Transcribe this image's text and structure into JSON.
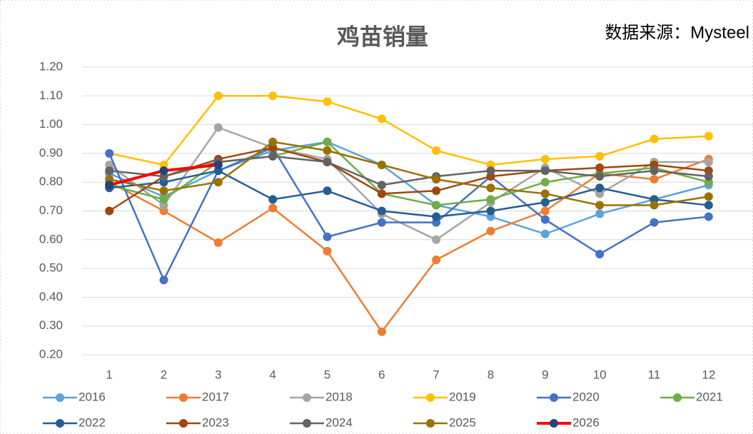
{
  "chart_data": {
    "type": "line",
    "title": "鸡苗销量",
    "annotation": "数据来源：Mysteel",
    "categories": [
      "1",
      "2",
      "3",
      "4",
      "5",
      "6",
      "7",
      "8",
      "9",
      "10",
      "11",
      "12"
    ],
    "ylim": [
      0.2,
      1.2
    ],
    "yticks": [
      {
        "value": 0.2,
        "label": "0.20"
      },
      {
        "value": 0.3,
        "label": "0.30"
      },
      {
        "value": 0.4,
        "label": "0.40"
      },
      {
        "value": 0.5,
        "label": "0.50"
      },
      {
        "value": 0.6,
        "label": "0.60"
      },
      {
        "value": 0.7,
        "label": "0.70"
      },
      {
        "value": 0.8,
        "label": "0.80"
      },
      {
        "value": 0.9,
        "label": "0.90"
      },
      {
        "value": 1.0,
        "label": "1.00"
      },
      {
        "value": 1.1,
        "label": "1.10"
      },
      {
        "value": 1.2,
        "label": "1.20"
      }
    ],
    "grid": true,
    "legend": "bottom",
    "series": [
      {
        "name": "2016",
        "color": "#5ba3dc",
        "values": [
          0.83,
          0.75,
          0.84,
          0.91,
          0.94,
          0.86,
          0.72,
          0.68,
          0.62,
          0.69,
          0.74,
          0.79
        ]
      },
      {
        "name": "2017",
        "color": "#ed7d31",
        "values": [
          0.8,
          0.7,
          0.59,
          0.71,
          0.56,
          0.28,
          0.53,
          0.63,
          0.7,
          0.83,
          0.81,
          0.88
        ]
      },
      {
        "name": "2018",
        "color": "#a5a5a5",
        "values": [
          0.86,
          0.72,
          0.99,
          0.92,
          0.88,
          0.69,
          0.6,
          0.73,
          0.85,
          0.76,
          0.87,
          0.87
        ]
      },
      {
        "name": "2019",
        "color": "#ffc000",
        "values": [
          0.9,
          0.86,
          1.1,
          1.1,
          1.08,
          1.02,
          0.91,
          0.86,
          0.88,
          0.89,
          0.95,
          0.96
        ]
      },
      {
        "name": "2020",
        "color": "#4472c4",
        "values": [
          0.9,
          0.46,
          0.84,
          0.92,
          0.61,
          0.66,
          0.66,
          0.82,
          0.67,
          0.55,
          0.66,
          0.68
        ]
      },
      {
        "name": "2021",
        "color": "#70ad47",
        "values": [
          0.79,
          0.74,
          0.87,
          0.89,
          0.94,
          0.76,
          0.72,
          0.74,
          0.8,
          0.83,
          0.85,
          0.8
        ]
      },
      {
        "name": "2022",
        "color": "#255e91",
        "values": [
          0.78,
          0.8,
          0.84,
          0.74,
          0.77,
          0.7,
          0.68,
          0.7,
          0.73,
          0.78,
          0.74,
          0.72
        ]
      },
      {
        "name": "2023",
        "color": "#9e480e",
        "values": [
          0.7,
          0.82,
          0.88,
          0.92,
          0.87,
          0.76,
          0.77,
          0.82,
          0.84,
          0.85,
          0.86,
          0.84
        ]
      },
      {
        "name": "2024",
        "color": "#636363",
        "values": [
          0.84,
          0.82,
          0.87,
          0.89,
          0.87,
          0.79,
          0.82,
          0.84,
          0.84,
          0.82,
          0.84,
          0.82
        ]
      },
      {
        "name": "2025",
        "color": "#997300",
        "values": [
          0.81,
          0.77,
          0.8,
          0.94,
          0.91,
          0.86,
          0.81,
          0.78,
          0.76,
          0.72,
          0.72,
          0.75
        ]
      },
      {
        "name": "2026",
        "color": "#ff0000",
        "marker_color": "#264478",
        "values": [
          0.79,
          0.84,
          0.86,
          null,
          null,
          null,
          null,
          null,
          null,
          null,
          null,
          null
        ]
      }
    ]
  }
}
